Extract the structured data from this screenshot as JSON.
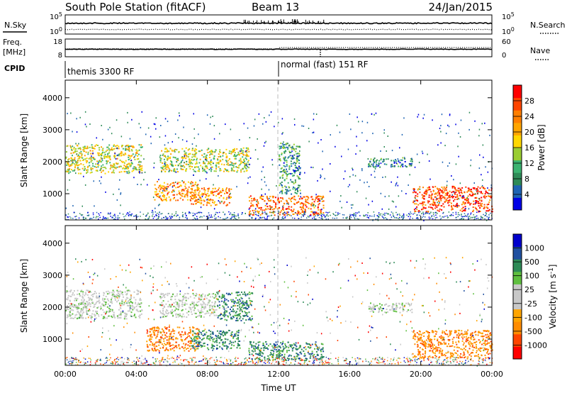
{
  "header": {
    "title": "South Pole Station (fitACF)",
    "beam": "Beam 13",
    "date": "24/Jan/2015"
  },
  "top_panels": {
    "nsky_label": "N.Sky",
    "nsearch_label": "N.Search",
    "freq_label_1": "Freq.",
    "freq_label_2": "[MHz]",
    "nave_label": "Nave",
    "noise_ticks_left": [
      "10^5",
      "10^0"
    ],
    "noise_ticks_right": [
      "10^5",
      "10^0"
    ],
    "freq_ticks": [
      "18",
      "8"
    ],
    "nave_ticks": [
      "60",
      "0"
    ],
    "cpid_label": "CPID",
    "cpid_segments": [
      {
        "label": "themis 3300 RF",
        "start_hour": 0
      },
      {
        "label": "normal (fast) 151 RF",
        "start_hour": 12
      }
    ]
  },
  "colors": {
    "power_scale": [
      "#0000e6",
      "#1e64b4",
      "#2e8b57",
      "#3cb371",
      "#9acd32",
      "#ffd700",
      "#ffa500",
      "#ff7f00",
      "#ff4500",
      "#ff0000"
    ],
    "velocity_scale": [
      "#0000cc",
      "#2050a0",
      "#2e8b57",
      "#5fbf3f",
      "#c8c8c8",
      "#c8c8c8",
      "#ffa500",
      "#ff8c00",
      "#ff4500",
      "#ff0000"
    ]
  },
  "chart_data": [
    {
      "type": "heatmap",
      "panel": "power",
      "xlabel": "Time UT",
      "ylabel": "Slant Range [km]",
      "xlim": [
        0,
        24
      ],
      "ylim": [
        180,
        4550
      ],
      "xticks": [
        "00:00",
        "04:00",
        "08:00",
        "12:00",
        "16:00",
        "20:00",
        "00:00"
      ],
      "yticks": [
        1000,
        2000,
        3000,
        4000
      ],
      "colorbar": {
        "label": "Power [dB]",
        "ticks": [
          "4",
          "8",
          "12",
          "16",
          "20",
          "24",
          "28"
        ],
        "range": [
          0,
          30
        ]
      },
      "echo_regions": [
        {
          "t_start": 0.0,
          "t_end": 4.3,
          "r_start": 1650,
          "r_end": 2550,
          "value": 14
        },
        {
          "t_start": 5.3,
          "t_end": 10.3,
          "r_start": 1700,
          "r_end": 2450,
          "value": 13
        },
        {
          "t_start": 5.0,
          "t_end": 7.5,
          "r_start": 800,
          "r_end": 1400,
          "value": 20
        },
        {
          "t_start": 7.0,
          "t_end": 9.3,
          "r_start": 650,
          "r_end": 1200,
          "value": 20
        },
        {
          "t_start": 10.3,
          "t_end": 14.5,
          "r_start": 350,
          "r_end": 950,
          "value": 22
        },
        {
          "t_start": 12.0,
          "t_end": 13.2,
          "r_start": 1000,
          "r_end": 2600,
          "value": 7
        },
        {
          "t_start": 17.0,
          "t_end": 19.5,
          "r_start": 1850,
          "r_end": 2150,
          "value": 6
        },
        {
          "t_start": 19.5,
          "t_end": 24.0,
          "r_start": 450,
          "r_end": 1250,
          "value": 24
        }
      ]
    },
    {
      "type": "heatmap",
      "panel": "velocity",
      "xlabel": "Time UT",
      "ylabel": "Slant Range [km]",
      "xlim": [
        0,
        24
      ],
      "ylim": [
        180,
        4550
      ],
      "xticks": [
        "00:00",
        "04:00",
        "08:00",
        "12:00",
        "16:00",
        "20:00",
        "00:00"
      ],
      "yticks": [
        1000,
        2000,
        3000,
        4000
      ],
      "colorbar": {
        "label": "Velocity [m s^-1]",
        "ticks": [
          "1000",
          "500",
          "100",
          "25",
          "-25",
          "-100",
          "-500",
          "-1000"
        ]
      },
      "echo_regions": [
        {
          "t_start": 0.0,
          "t_end": 4.3,
          "r_start": 1650,
          "r_end": 2550,
          "value": 0
        },
        {
          "t_start": 5.3,
          "t_end": 8.5,
          "r_start": 1700,
          "r_end": 2450,
          "value": 0
        },
        {
          "t_start": 8.5,
          "t_end": 10.5,
          "r_start": 1600,
          "r_end": 2500,
          "value": 300
        },
        {
          "t_start": 4.5,
          "t_end": 7.5,
          "r_start": 650,
          "r_end": 1400,
          "value": -200
        },
        {
          "t_start": 7.0,
          "t_end": 9.8,
          "r_start": 700,
          "r_end": 1300,
          "value": 250
        },
        {
          "t_start": 10.3,
          "t_end": 14.5,
          "r_start": 350,
          "r_end": 950,
          "value": 200
        },
        {
          "t_start": 17.0,
          "t_end": 19.5,
          "r_start": 1850,
          "r_end": 2150,
          "value": 0
        },
        {
          "t_start": 19.5,
          "t_end": 24.0,
          "r_start": 400,
          "r_end": 1300,
          "value": -300
        }
      ]
    }
  ]
}
